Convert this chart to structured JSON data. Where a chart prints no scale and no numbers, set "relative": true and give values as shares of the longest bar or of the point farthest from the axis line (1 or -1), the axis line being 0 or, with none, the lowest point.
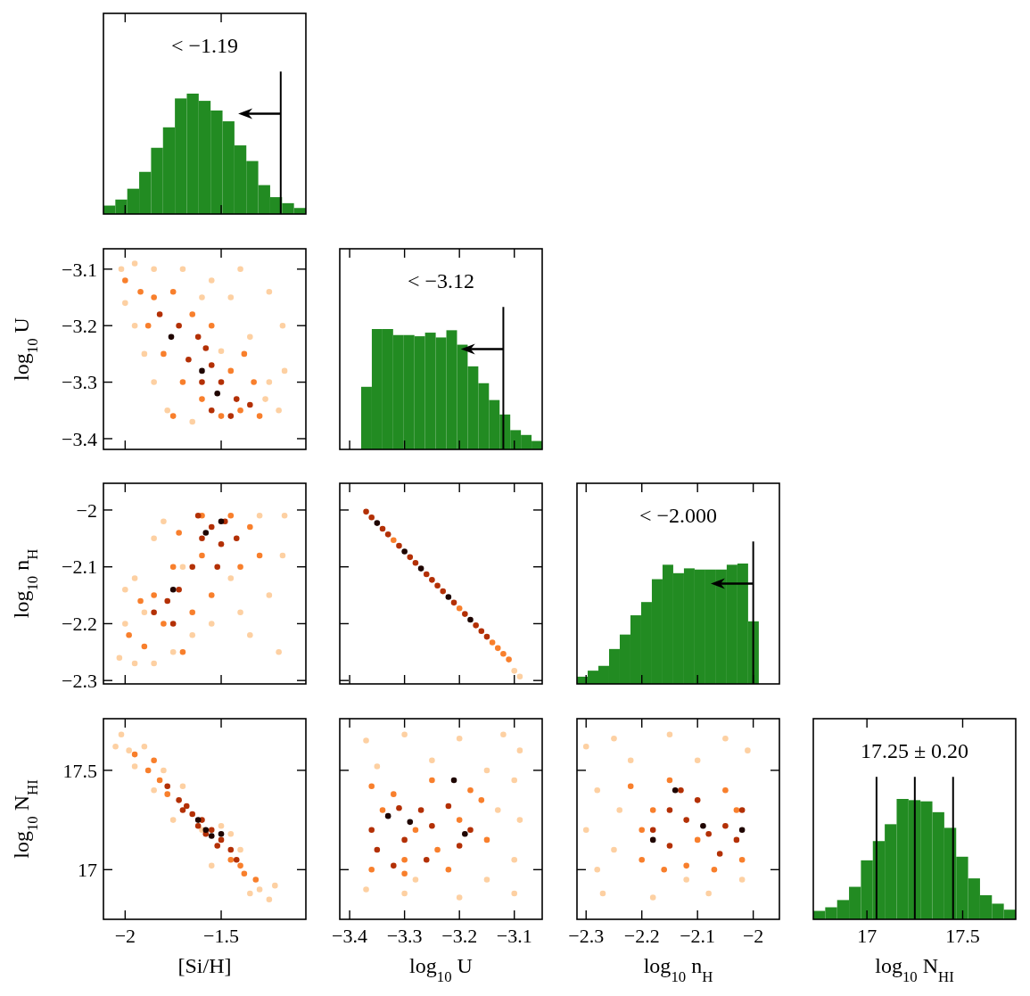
{
  "chart_data": [
    {
      "type": "bar",
      "xlim": [
        -2.113,
        -1.059
      ],
      "xticks": [
        -2,
        -1.5
      ],
      "tick_labels": false,
      "relative": true,
      "color": "#228b22",
      "x": [
        -2.082,
        -2.02,
        -1.958,
        -1.896,
        -1.834,
        -1.772,
        -1.71,
        -1.648,
        -1.586,
        -1.524,
        -1.462,
        -1.4,
        -1.338,
        -1.276,
        -1.214,
        -1.152,
        -1.09
      ],
      "values": [
        0.07,
        0.12,
        0.21,
        0.35,
        0.55,
        0.72,
        0.96,
        1,
        0.94,
        0.86,
        0.77,
        0.57,
        0.44,
        0.24,
        0.14,
        0.09,
        0.05
      ],
      "ref_lines": [
        {
          "axis": "x",
          "value": -1.19,
          "label": "< −1.19"
        }
      ]
    },
    {
      "type": "scatter",
      "marker": "circle",
      "xlim": [
        -2.113,
        -1.059
      ],
      "ylim": [
        -3.419,
        -3.064
      ],
      "xticks": [
        -2,
        -1.5
      ],
      "yticks": [
        {
          "value": -3.4,
          "label": "−3.4"
        },
        {
          "value": -3.3,
          "label": "−3.3"
        },
        {
          "value": -3.2,
          "label": "−3.2"
        },
        {
          "value": -3.1,
          "label": "−3.1"
        }
      ],
      "tick_labels": "y",
      "ylabel": "log$_{10}$ U",
      "series": [
        {
          "color": "#fdd0a2",
          "x": [
            -2.02,
            -1.95,
            -1.85,
            -1.7,
            -1.55,
            -1.4,
            -1.25,
            -1.18,
            -1.17,
            -1.2,
            -1.27,
            -1.95,
            -2.0,
            -1.9,
            -1.85,
            -1.78,
            -1.65,
            -1.5,
            -1.35,
            -1.45,
            -1.6,
            -1.25
          ],
          "values": [
            -3.1,
            -3.09,
            -3.1,
            -3.1,
            -3.12,
            -3.1,
            -3.14,
            -3.2,
            -3.28,
            -3.35,
            -3.33,
            -3.2,
            -3.16,
            -3.25,
            -3.3,
            -3.35,
            -3.37,
            -3.245,
            -3.22,
            -3.15,
            -3.15,
            -3.3
          ]
        },
        {
          "color": "#f87f2c",
          "x": [
            -2.0,
            -1.92,
            -1.85,
            -1.75,
            -1.88,
            -1.8,
            -1.7,
            -1.6,
            -1.5,
            -1.4,
            -1.33,
            -1.38,
            -1.55,
            -1.65,
            -1.45,
            -1.3,
            -1.75
          ],
          "values": [
            -3.12,
            -3.14,
            -3.15,
            -3.14,
            -3.2,
            -3.25,
            -3.3,
            -3.33,
            -3.36,
            -3.35,
            -3.3,
            -3.25,
            -3.2,
            -3.18,
            -3.28,
            -3.36,
            -3.36
          ]
        },
        {
          "color": "#b33005",
          "x": [
            -1.82,
            -1.72,
            -1.62,
            -1.55,
            -1.5,
            -1.42,
            -1.6,
            -1.67,
            -1.55,
            -1.45,
            -1.35,
            -1.58
          ],
          "values": [
            -3.18,
            -3.2,
            -3.22,
            -3.27,
            -3.3,
            -3.33,
            -3.3,
            -3.26,
            -3.35,
            -3.36,
            -3.34,
            -3.24
          ]
        },
        {
          "color": "#1f0500",
          "x": [
            -1.76,
            -1.52,
            -1.6
          ],
          "values": [
            -3.22,
            -3.32,
            -3.28
          ]
        }
      ]
    },
    {
      "type": "bar",
      "xlim": [
        -3.418,
        -3.0492
      ],
      "xticks": [
        -3.4,
        -3.3,
        -3.2,
        -3.1
      ],
      "tick_labels": false,
      "relative": true,
      "color": "#228b22",
      "x": [
        -3.3693,
        -3.3499,
        -3.3305,
        -3.3111,
        -3.2917,
        -3.2723,
        -3.2529,
        -3.2335,
        -3.2141,
        -3.1947,
        -3.1753,
        -3.1559,
        -3.1365,
        -3.1171,
        -3.0977,
        -3.0783,
        -3.0589
      ],
      "values": [
        0.52,
        1,
        1,
        0.95,
        0.95,
        0.94,
        0.97,
        0.93,
        0.99,
        0.87,
        0.69,
        0.55,
        0.41,
        0.29,
        0.16,
        0.12,
        0.07
      ],
      "ref_lines": [
        {
          "axis": "x",
          "value": -3.12,
          "label": "< −3.12"
        }
      ]
    },
    {
      "type": "scatter",
      "marker": "circle",
      "xlim": [
        -2.113,
        -1.059
      ],
      "ylim": [
        -2.306,
        -1.953
      ],
      "xticks": [
        -2,
        -1.5
      ],
      "yticks": [
        {
          "value": -2.3,
          "label": "−2.3"
        },
        {
          "value": -2.2,
          "label": "−2.2"
        },
        {
          "value": -2.1,
          "label": "−2.1"
        },
        {
          "value": -2,
          "label": "−2"
        }
      ],
      "tick_labels": "y",
      "ylabel": "log$_{10}$ n$_{H}$",
      "series": [
        {
          "color": "#fdd0a2",
          "x": [
            -2.03,
            -2.0,
            -1.95,
            -1.85,
            -1.75,
            -1.65,
            -1.55,
            -1.4,
            -1.25,
            -1.18,
            -1.17,
            -1.3,
            -1.85,
            -1.95,
            -1.8,
            -1.2,
            -1.35,
            -1.9,
            -1.45,
            -1.7,
            -2.0
          ],
          "values": [
            -2.26,
            -2.2,
            -2.27,
            -2.27,
            -2.25,
            -2.22,
            -2.2,
            -2.18,
            -2.15,
            -2.08,
            -2.01,
            -2.01,
            -2.05,
            -2.12,
            -2.02,
            -2.25,
            -2.22,
            -2.18,
            -2.12,
            -2.1,
            -2.14
          ]
        },
        {
          "color": "#f87f2c",
          "x": [
            -1.98,
            -1.9,
            -1.8,
            -1.85,
            -1.75,
            -1.72,
            -1.6,
            -1.45,
            -1.35,
            -1.3,
            -1.4,
            -1.55,
            -1.65,
            -1.7,
            -1.6,
            -1.92
          ],
          "values": [
            -2.22,
            -2.24,
            -2.2,
            -2.15,
            -2.1,
            -2.04,
            -2.01,
            -2.01,
            -2.03,
            -2.08,
            -2.1,
            -2.15,
            -2.18,
            -2.25,
            -2.08,
            -2.16
          ]
        },
        {
          "color": "#b33005",
          "x": [
            -1.85,
            -1.78,
            -1.72,
            -1.65,
            -1.6,
            -1.55,
            -1.5,
            -1.48,
            -1.42,
            -1.52,
            -1.62,
            -1.75
          ],
          "values": [
            -2.18,
            -2.16,
            -2.14,
            -2.1,
            -2.05,
            -2.03,
            -2.06,
            -2.02,
            -2.05,
            -2.1,
            -2.01,
            -2.2
          ]
        },
        {
          "color": "#1f0500",
          "x": [
            -1.75,
            -1.5,
            -1.58
          ],
          "values": [
            -2.14,
            -2.02,
            -2.04
          ]
        }
      ]
    },
    {
      "type": "scatter",
      "marker": "circle",
      "xlim": [
        -3.418,
        -3.0492
      ],
      "ylim": [
        -2.306,
        -1.953
      ],
      "xticks": [
        -3.4,
        -3.3,
        -3.2,
        -3.1
      ],
      "yticks": [
        -2.3,
        -2.2,
        -2.1,
        -2
      ],
      "tick_labels": false,
      "series": [
        {
          "color": "#fdd0a2",
          "x": [
            -3.1,
            -3.09
          ],
          "values": [
            -2.283,
            -2.293
          ]
        },
        {
          "color": "#f87f2c",
          "x": [
            -3.32,
            -3.2,
            -3.14,
            -3.13,
            -3.12,
            -3.11
          ],
          "values": [
            -2.053,
            -2.173,
            -2.233,
            -2.243,
            -2.253,
            -2.263
          ]
        },
        {
          "color": "#b33005",
          "x": [
            -3.37,
            -3.36,
            -3.34,
            -3.33,
            -3.31,
            -3.29,
            -3.28,
            -3.26,
            -3.25,
            -3.24,
            -3.23,
            -3.21,
            -3.19,
            -3.17,
            -3.16,
            -3.15
          ],
          "values": [
            -2.003,
            -2.013,
            -2.033,
            -2.043,
            -2.063,
            -2.083,
            -2.093,
            -2.113,
            -2.123,
            -2.133,
            -2.143,
            -2.163,
            -2.183,
            -2.203,
            -2.213,
            -2.223
          ]
        },
        {
          "color": "#1f0500",
          "x": [
            -3.35,
            -3.3,
            -3.27,
            -3.22,
            -3.18
          ],
          "values": [
            -2.023,
            -2.073,
            -2.103,
            -2.153,
            -2.193
          ]
        }
      ]
    },
    {
      "type": "bar",
      "xlim": [
        -2.3164,
        -1.953
      ],
      "xticks": [
        -2.3,
        -2.2,
        -2.1,
        -2
      ],
      "tick_labels": false,
      "relative": true,
      "color": "#228b22",
      "x": [
        -2.3068,
        -2.2876,
        -2.2684,
        -2.2492,
        -2.23,
        -2.2108,
        -2.1916,
        -2.1724,
        -2.1532,
        -2.134,
        -2.1148,
        -2.0956,
        -2.0764,
        -2.0572,
        -2.038,
        -2.0188,
        -1.9996
      ],
      "values": [
        0.06,
        0.11,
        0.15,
        0.29,
        0.41,
        0.57,
        0.68,
        0.87,
        0.99,
        0.92,
        0.96,
        0.95,
        0.95,
        0.95,
        0.99,
        1,
        0.52
      ],
      "ref_lines": [
        {
          "axis": "x",
          "value": -2.0,
          "label": "< −2.000"
        }
      ]
    },
    {
      "type": "scatter",
      "marker": "circle",
      "xlim": [
        -2.113,
        -1.059
      ],
      "ylim": [
        16.75,
        17.76
      ],
      "xticks": [
        {
          "value": -2,
          "label": "−2"
        },
        {
          "value": -1.5,
          "label": "−1.5"
        }
      ],
      "yticks": [
        17,
        17.5
      ],
      "xlabel": "[Si/H]",
      "ylabel": "log$_{10}$ N$_{HI}$",
      "series": [
        {
          "color": "#fdd0a2",
          "x": [
            -2.05,
            -2.02,
            -1.95,
            -1.9,
            -1.8,
            -1.7,
            -1.6,
            -1.5,
            -1.4,
            -1.3,
            -1.25,
            -1.22,
            -1.35,
            -1.55,
            -1.75,
            -1.45,
            -1.85,
            -1.98
          ],
          "values": [
            17.62,
            17.68,
            17.52,
            17.62,
            17.5,
            17.42,
            17.2,
            17.22,
            17.1,
            16.9,
            16.85,
            16.92,
            16.88,
            17.02,
            17.25,
            17.18,
            17.4,
            17.6
          ]
        },
        {
          "color": "#f87f2c",
          "x": [
            -1.95,
            -1.88,
            -1.82,
            -1.45,
            -1.38,
            -1.32,
            -1.4,
            -1.85,
            -1.78
          ],
          "values": [
            17.58,
            17.5,
            17.45,
            17.05,
            16.98,
            16.95,
            17.02,
            17.55,
            17.38
          ]
        },
        {
          "color": "#b33005",
          "x": [
            -1.78,
            -1.72,
            -1.68,
            -1.65,
            -1.6,
            -1.55,
            -1.5,
            -1.45,
            -1.42,
            -1.7,
            -1.58,
            -1.52,
            -1.62
          ],
          "values": [
            17.42,
            17.35,
            17.32,
            17.28,
            17.25,
            17.2,
            17.15,
            17.1,
            17.05,
            17.3,
            17.18,
            17.12,
            17.22
          ]
        },
        {
          "color": "#1f0500",
          "x": [
            -1.62,
            -1.58,
            -1.55,
            -1.5
          ],
          "values": [
            17.25,
            17.2,
            17.17,
            17.18
          ]
        }
      ]
    },
    {
      "type": "scatter",
      "marker": "circle",
      "xlim": [
        -3.418,
        -3.0492
      ],
      "ylim": [
        16.75,
        17.76
      ],
      "xticks": [
        {
          "value": -3.4,
          "label": "−3.4"
        },
        {
          "value": -3.3,
          "label": "−3.3"
        },
        {
          "value": -3.2,
          "label": "−3.2"
        },
        {
          "value": -3.1,
          "label": "−3.1"
        }
      ],
      "yticks": [
        17,
        17.5
      ],
      "tick_labels": "x",
      "xlabel": "log$_{10}$ U",
      "series": [
        {
          "color": "#fdd0a2",
          "x": [
            -3.37,
            -3.3,
            -3.2,
            -3.12,
            -3.09,
            -3.1,
            -3.09,
            -3.1,
            -3.1,
            -3.2,
            -3.3,
            -3.37,
            -3.25,
            -3.35,
            -3.15,
            -3.15,
            -3.28,
            -3.13
          ],
          "values": [
            17.65,
            17.68,
            17.66,
            17.68,
            17.6,
            17.45,
            17.25,
            17.05,
            16.88,
            16.86,
            16.88,
            16.9,
            17.55,
            17.52,
            17.5,
            16.95,
            16.95,
            17.3
          ]
        },
        {
          "color": "#f87f2c",
          "x": [
            -3.36,
            -3.36,
            -3.32,
            -3.3,
            -3.25,
            -3.22,
            -3.18,
            -3.15,
            -3.2,
            -3.28,
            -3.34,
            -3.24,
            -3.16,
            -3.3
          ],
          "values": [
            17.42,
            17.0,
            17.38,
            17.05,
            17.45,
            17.0,
            17.4,
            17.15,
            17.25,
            17.2,
            17.3,
            17.1,
            17.35,
            16.98
          ]
        },
        {
          "color": "#b33005",
          "x": [
            -3.36,
            -3.35,
            -3.31,
            -3.3,
            -3.27,
            -3.25,
            -3.22,
            -3.2,
            -3.18,
            -3.32,
            -3.26
          ],
          "values": [
            17.2,
            17.1,
            17.31,
            17.15,
            17.3,
            17.22,
            17.32,
            17.12,
            17.2,
            17.02,
            17.05
          ]
        },
        {
          "color": "#1f0500",
          "x": [
            -3.33,
            -3.29,
            -3.19,
            -3.21
          ],
          "values": [
            17.27,
            17.24,
            17.18,
            17.45
          ]
        }
      ]
    },
    {
      "type": "scatter",
      "marker": "circle",
      "xlim": [
        -2.3164,
        -1.953
      ],
      "ylim": [
        16.75,
        17.76
      ],
      "xticks": [
        {
          "value": -2.3,
          "label": "−2.3"
        },
        {
          "value": -2.2,
          "label": "−2.2"
        },
        {
          "value": -2.1,
          "label": "−2.1"
        },
        {
          "value": -2,
          "label": "−2"
        }
      ],
      "yticks": [
        17,
        17.5
      ],
      "tick_labels": "x",
      "xlabel": "log$_{10}$ n$_{H}$",
      "series": [
        {
          "color": "#fdd0a2",
          "x": [
            -2.3,
            -2.25,
            -2.15,
            -2.05,
            -2.01,
            -2.28,
            -2.3,
            -2.28,
            -2.27,
            -2.18,
            -2.08,
            -2.02,
            -2.22,
            -2.1,
            -2.25,
            -2.24,
            -2.12
          ],
          "values": [
            17.62,
            17.66,
            17.68,
            17.66,
            17.6,
            17.4,
            17.2,
            17.0,
            16.88,
            16.86,
            16.88,
            16.95,
            17.55,
            17.55,
            17.1,
            17.3,
            16.95
          ]
        },
        {
          "color": "#f87f2c",
          "x": [
            -2.22,
            -2.2,
            -2.15,
            -2.12,
            -2.05,
            -2.02,
            -2.18,
            -2.1,
            -2.2,
            -2.03,
            -2.07,
            -2.16
          ],
          "values": [
            17.42,
            17.05,
            17.45,
            17.02,
            17.4,
            17.05,
            17.3,
            17.15,
            17.2,
            17.3,
            17.0,
            17.0
          ]
        },
        {
          "color": "#b33005",
          "x": [
            -2.18,
            -2.15,
            -2.12,
            -2.1,
            -2.08,
            -2.05,
            -2.03,
            -2.02,
            -2.15,
            -2.06,
            -2.13
          ],
          "values": [
            17.2,
            17.3,
            17.25,
            17.35,
            17.18,
            17.22,
            17.15,
            17.3,
            17.12,
            17.08,
            17.4
          ]
        },
        {
          "color": "#1f0500",
          "x": [
            -2.18,
            -2.09,
            -2.02,
            -2.14
          ],
          "values": [
            17.15,
            17.22,
            17.2,
            17.4
          ]
        }
      ]
    },
    {
      "type": "bar",
      "xlim": [
        16.7198,
        17.7772
      ],
      "xticks": [
        17,
        17.5
      ],
      "tick_labels": "x",
      "xlabel": "log$_{10}$ N$_{HI}$",
      "relative": true,
      "color": "#228b22",
      "x": [
        16.7509,
        16.8131,
        16.8753,
        16.9375,
        16.9997,
        17.0619,
        17.1241,
        17.1863,
        17.2485,
        17.3107,
        17.3729,
        17.4351,
        17.4973,
        17.5595,
        17.6217,
        17.6839,
        17.7461
      ],
      "values": [
        0.07,
        0.1,
        0.16,
        0.27,
        0.49,
        0.65,
        0.79,
        1,
        0.99,
        0.98,
        0.89,
        0.76,
        0.52,
        0.34,
        0.2,
        0.13,
        0.08
      ],
      "annotations": [
        "17.25 ± 0.20"
      ],
      "ref_lines": [
        {
          "axis": "x",
          "value": 17.05
        },
        {
          "axis": "x",
          "value": 17.25
        },
        {
          "axis": "x",
          "value": 17.45
        }
      ]
    }
  ]
}
